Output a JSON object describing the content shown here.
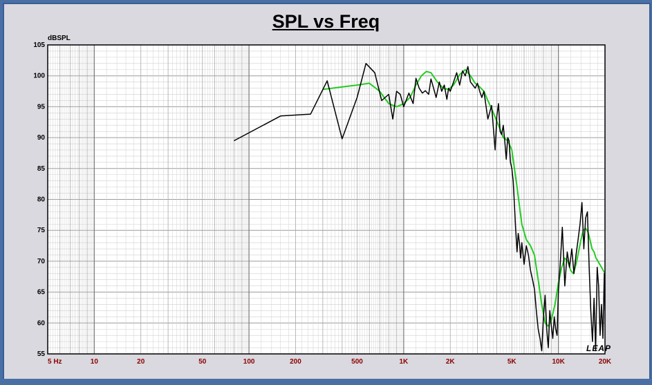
{
  "chart_data": {
    "type": "line",
    "title": "SPL vs Freq",
    "ylabel": "dBSPL",
    "xlabel": "",
    "x_scale": "log",
    "xlim": [
      5,
      20000
    ],
    "ylim": [
      55,
      105
    ],
    "grid": true,
    "watermark": "LEAP",
    "x_tick_labels": [
      {
        "value": 5,
        "label": "5 Hz"
      },
      {
        "value": 10,
        "label": "10"
      },
      {
        "value": 20,
        "label": "20"
      },
      {
        "value": 50,
        "label": "50"
      },
      {
        "value": 100,
        "label": "100"
      },
      {
        "value": 200,
        "label": "200"
      },
      {
        "value": 500,
        "label": "500"
      },
      {
        "value": 1000,
        "label": "1K"
      },
      {
        "value": 2000,
        "label": "2K"
      },
      {
        "value": 5000,
        "label": "5K"
      },
      {
        "value": 10000,
        "label": "10K"
      },
      {
        "value": 20000,
        "label": "20K"
      }
    ],
    "y_ticks": [
      55,
      60,
      65,
      70,
      75,
      80,
      85,
      90,
      95,
      100,
      105
    ],
    "series": [
      {
        "color": "#000000",
        "x": [
          80,
          160,
          250,
          320,
          400,
          500,
          570,
          650,
          720,
          800,
          850,
          900,
          950,
          1000,
          1080,
          1150,
          1200,
          1260,
          1320,
          1380,
          1450,
          1500,
          1560,
          1620,
          1700,
          1760,
          1830,
          1900,
          1950,
          2000,
          2100,
          2200,
          2300,
          2400,
          2500,
          2600,
          2700,
          2800,
          2900,
          3000,
          3100,
          3200,
          3300,
          3500,
          3700,
          3900,
          4000,
          4100,
          4200,
          4300,
          4400,
          4500,
          4600,
          4700,
          4800,
          4900,
          5000,
          5100,
          5200,
          5300,
          5400,
          5500,
          5600,
          5700,
          5800,
          6000,
          6200,
          6400,
          6600,
          6800,
          7000,
          7200,
          7400,
          7600,
          7800,
          8000,
          8200,
          8400,
          8600,
          8800,
          9000,
          9200,
          9400,
          9600,
          9800,
          10000,
          10300,
          10600,
          11000,
          11400,
          11800,
          12200,
          12600,
          13000,
          13400,
          13800,
          14200,
          14600,
          15000,
          15400,
          15800,
          16200,
          16600,
          17000,
          17400,
          17800,
          18200,
          18600,
          19000,
          19400,
          19800,
          20000
        ],
        "y": [
          89.5,
          93.5,
          93.8,
          99.2,
          89.8,
          96.5,
          102.0,
          100.5,
          96.0,
          97.0,
          93.0,
          97.5,
          97.0,
          95.0,
          97.2,
          95.5,
          99.6,
          98.0,
          97.2,
          97.6,
          97.0,
          99.5,
          98.0,
          96.5,
          99.0,
          97.5,
          98.5,
          96.2,
          98.0,
          97.5,
          99.0,
          100.5,
          98.5,
          100.8,
          100.0,
          101.5,
          99.0,
          98.5,
          98.0,
          98.8,
          97.5,
          96.5,
          97.5,
          93.0,
          95.2,
          88.0,
          93.5,
          95.5,
          91.0,
          90.5,
          92.0,
          89.5,
          86.5,
          90.0,
          89.5,
          86.0,
          85.0,
          83.0,
          79.0,
          75.0,
          71.5,
          74.5,
          73.0,
          70.5,
          73.0,
          69.5,
          72.5,
          71.0,
          68.5,
          67.0,
          65.5,
          62.0,
          59.0,
          57.5,
          55.5,
          61.0,
          64.5,
          59.0,
          56.0,
          62.0,
          59.5,
          57.5,
          61.0,
          59.0,
          58.0,
          65.0,
          70.0,
          75.5,
          66.0,
          71.5,
          69.0,
          72.0,
          68.0,
          71.0,
          73.5,
          76.0,
          79.5,
          72.0,
          77.0,
          78.0,
          69.0,
          62.0,
          57.0,
          64.0,
          55.5,
          69.0,
          66.0,
          58.0,
          63.0,
          57.5,
          68.0,
          62.0
        ]
      },
      {
        "color": "#22cc22",
        "x": [
          300,
          400,
          500,
          600,
          700,
          800,
          900,
          1000,
          1100,
          1200,
          1300,
          1400,
          1500,
          1650,
          1800,
          1950,
          2100,
          2300,
          2500,
          2700,
          2900,
          3100,
          3300,
          3500,
          3800,
          4100,
          4400,
          4700,
          5000,
          5400,
          5800,
          6200,
          6600,
          7000,
          7400,
          7800,
          8200,
          8600,
          9000,
          9500,
          10000,
          10500,
          11000,
          11500,
          12000,
          12500,
          13000,
          13500,
          14000,
          14500,
          15000,
          15500,
          16000,
          16500,
          17000,
          17500,
          18000,
          18500,
          19000,
          19500,
          20000
        ],
        "y": [
          97.8,
          98.2,
          98.5,
          98.8,
          97.5,
          95.5,
          95.0,
          95.5,
          96.5,
          98.5,
          100.0,
          100.7,
          100.5,
          99.0,
          98.0,
          97.8,
          98.5,
          100.2,
          101.0,
          100.0,
          98.8,
          98.2,
          97.5,
          96.0,
          94.0,
          92.0,
          90.0,
          89.5,
          88.0,
          82.0,
          76.0,
          73.5,
          72.5,
          71.0,
          67.0,
          63.0,
          60.0,
          59.5,
          60.5,
          63.0,
          66.5,
          69.0,
          70.5,
          70.0,
          68.5,
          68.0,
          69.5,
          71.5,
          73.5,
          75.0,
          75.3,
          74.8,
          73.5,
          72.0,
          71.5,
          70.5,
          70.0,
          69.5,
          69.0,
          68.5,
          68.0
        ]
      }
    ]
  }
}
